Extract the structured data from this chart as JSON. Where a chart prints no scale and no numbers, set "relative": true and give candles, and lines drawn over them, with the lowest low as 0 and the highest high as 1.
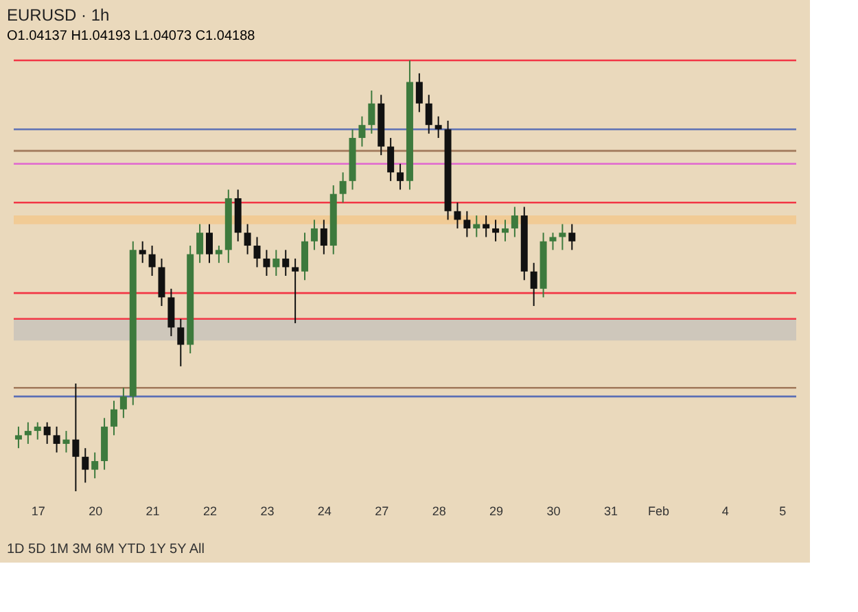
{
  "chart_data": {
    "type": "candlestick",
    "title": "EURUSD · 1h",
    "subtitle": "O1.04137 H1.04193 L1.04073 C1.04188",
    "relative": true,
    "grid": false,
    "categories": [
      null,
      null,
      "17",
      null,
      null,
      null,
      null,
      null,
      "20",
      null,
      null,
      null,
      null,
      null,
      "21",
      null,
      null,
      null,
      null,
      null,
      "22",
      null,
      null,
      null,
      null,
      null,
      "23",
      null,
      null,
      null,
      null,
      null,
      "24",
      null,
      null,
      null,
      null,
      null,
      "27",
      null,
      null,
      null,
      null,
      null,
      "28",
      null,
      null,
      null,
      null,
      null,
      "29",
      null,
      null,
      null,
      null,
      null,
      "30",
      null,
      null,
      null,
      null,
      null,
      "31",
      null,
      null,
      null,
      null,
      "Feb",
      null,
      null,
      null,
      null,
      null,
      null,
      "4",
      null,
      null,
      null,
      null,
      null,
      "5",
      null
    ],
    "colors": [
      "#3d7a3d",
      "#3d7a3d",
      "#3d7a3d",
      "#111111",
      "#111111",
      "#3d7a3d",
      "#111111",
      "#111111",
      "#3d7a3d",
      "#3d7a3d",
      "#3d7a3d",
      "#3d7a3d",
      "#3d7a3d",
      "#111111",
      "#111111",
      "#111111",
      "#111111",
      "#111111",
      "#3d7a3d",
      "#3d7a3d",
      "#111111",
      "#3d7a3d",
      "#3d7a3d",
      "#111111",
      "#111111",
      "#111111",
      "#111111",
      "#3d7a3d",
      "#111111",
      "#111111",
      "#3d7a3d",
      "#3d7a3d",
      "#111111",
      "#3d7a3d",
      "#3d7a3d",
      "#3d7a3d",
      "#3d7a3d",
      "#3d7a3d",
      "#111111",
      "#111111",
      "#111111",
      "#3d7a3d",
      "#111111",
      "#111111",
      "#111111",
      "#111111",
      "#111111",
      "#111111",
      "#3d7a3d",
      "#111111",
      "#111111",
      "#3d7a3d",
      "#3d7a3d",
      "#111111",
      "#111111",
      "#3d7a3d",
      "#3d7a3d",
      "#3d7a3d",
      "#111111",
      null,
      null,
      null,
      null,
      null,
      null,
      null,
      null,
      null,
      null,
      null,
      null,
      null,
      null,
      null,
      null,
      null,
      null,
      null,
      null,
      null,
      null,
      null
    ],
    "ohlc": [
      [
        0.12,
        0.15,
        0.1,
        0.13
      ],
      [
        0.13,
        0.16,
        0.11,
        0.14
      ],
      [
        0.14,
        0.16,
        0.12,
        0.15
      ],
      [
        0.15,
        0.16,
        0.11,
        0.13
      ],
      [
        0.13,
        0.15,
        0.09,
        0.11
      ],
      [
        0.11,
        0.14,
        0.09,
        0.12
      ],
      [
        0.12,
        0.25,
        0.0,
        0.08
      ],
      [
        0.08,
        0.1,
        0.02,
        0.05
      ],
      [
        0.05,
        0.09,
        0.03,
        0.07
      ],
      [
        0.07,
        0.17,
        0.05,
        0.15
      ],
      [
        0.15,
        0.21,
        0.13,
        0.19
      ],
      [
        0.19,
        0.24,
        0.17,
        0.22
      ],
      [
        0.22,
        0.58,
        0.2,
        0.56
      ],
      [
        0.56,
        0.58,
        0.53,
        0.55
      ],
      [
        0.55,
        0.57,
        0.5,
        0.52
      ],
      [
        0.52,
        0.54,
        0.43,
        0.45
      ],
      [
        0.45,
        0.47,
        0.36,
        0.38
      ],
      [
        0.38,
        0.4,
        0.29,
        0.34
      ],
      [
        0.34,
        0.57,
        0.32,
        0.55
      ],
      [
        0.55,
        0.62,
        0.53,
        0.6
      ],
      [
        0.6,
        0.62,
        0.53,
        0.55
      ],
      [
        0.55,
        0.57,
        0.53,
        0.56
      ],
      [
        0.56,
        0.7,
        0.53,
        0.68
      ],
      [
        0.68,
        0.7,
        0.58,
        0.6
      ],
      [
        0.6,
        0.62,
        0.55,
        0.57
      ],
      [
        0.57,
        0.59,
        0.52,
        0.54
      ],
      [
        0.54,
        0.56,
        0.5,
        0.52
      ],
      [
        0.52,
        0.56,
        0.5,
        0.54
      ],
      [
        0.54,
        0.56,
        0.5,
        0.52
      ],
      [
        0.52,
        0.54,
        0.39,
        0.51
      ],
      [
        0.51,
        0.6,
        0.49,
        0.58
      ],
      [
        0.58,
        0.63,
        0.56,
        0.61
      ],
      [
        0.61,
        0.63,
        0.55,
        0.57
      ],
      [
        0.57,
        0.71,
        0.55,
        0.69
      ],
      [
        0.69,
        0.74,
        0.67,
        0.72
      ],
      [
        0.72,
        0.84,
        0.7,
        0.82
      ],
      [
        0.82,
        0.87,
        0.8,
        0.85
      ],
      [
        0.85,
        0.93,
        0.83,
        0.9
      ],
      [
        0.9,
        0.92,
        0.78,
        0.8
      ],
      [
        0.8,
        0.82,
        0.72,
        0.74
      ],
      [
        0.74,
        0.76,
        0.7,
        0.72
      ],
      [
        0.72,
        1.0,
        0.7,
        0.95
      ],
      [
        0.95,
        0.97,
        0.88,
        0.9
      ],
      [
        0.9,
        0.92,
        0.83,
        0.85
      ],
      [
        0.85,
        0.87,
        0.82,
        0.84
      ],
      [
        0.84,
        0.86,
        0.63,
        0.65
      ],
      [
        0.65,
        0.67,
        0.61,
        0.63
      ],
      [
        0.63,
        0.65,
        0.59,
        0.61
      ],
      [
        0.61,
        0.64,
        0.59,
        0.62
      ],
      [
        0.62,
        0.64,
        0.59,
        0.61
      ],
      [
        0.61,
        0.63,
        0.58,
        0.6
      ],
      [
        0.6,
        0.63,
        0.58,
        0.61
      ],
      [
        0.61,
        0.66,
        0.59,
        0.64
      ],
      [
        0.64,
        0.66,
        0.49,
        0.51
      ],
      [
        0.51,
        0.53,
        0.43,
        0.47
      ],
      [
        0.47,
        0.6,
        0.45,
        0.58
      ],
      [
        0.58,
        0.6,
        0.56,
        0.59
      ],
      [
        0.59,
        0.62,
        0.56,
        0.6
      ],
      [
        0.6,
        0.62,
        0.56,
        0.58
      ],
      null,
      null,
      null,
      null,
      null,
      null,
      null,
      null,
      null,
      null,
      null,
      null,
      null,
      null,
      null,
      null,
      null,
      null,
      null,
      null,
      null,
      null,
      null
    ],
    "ref_lines": [
      {
        "axis": "y",
        "value": 1.0,
        "color": "#f23645"
      },
      {
        "axis": "y",
        "value": 0.84,
        "color": "#5b6fb5"
      },
      {
        "axis": "y",
        "value": 0.79,
        "color": "#a0785a"
      },
      {
        "axis": "y",
        "value": 0.76,
        "color": "#e066d0"
      },
      {
        "axis": "y",
        "value": 0.67,
        "color": "#f23645"
      },
      {
        "axis": "y",
        "value": 0.46,
        "color": "#f23645"
      },
      {
        "axis": "y",
        "value": 0.4,
        "color": "#f23645"
      },
      {
        "axis": "y",
        "value": 0.24,
        "color": "#a0785a"
      },
      {
        "axis": "y",
        "value": 0.22,
        "color": "#5b6fb5"
      }
    ],
    "bands": [
      {
        "axis": "y",
        "from": 0.62,
        "to": 0.64,
        "color": "#f2c88e"
      },
      {
        "axis": "y",
        "from": 0.35,
        "to": 0.4,
        "color": "#c9c3bb"
      }
    ],
    "annotations": [
      "1D 5D 1M 3M 6M YTD 1Y 5Y All"
    ]
  }
}
